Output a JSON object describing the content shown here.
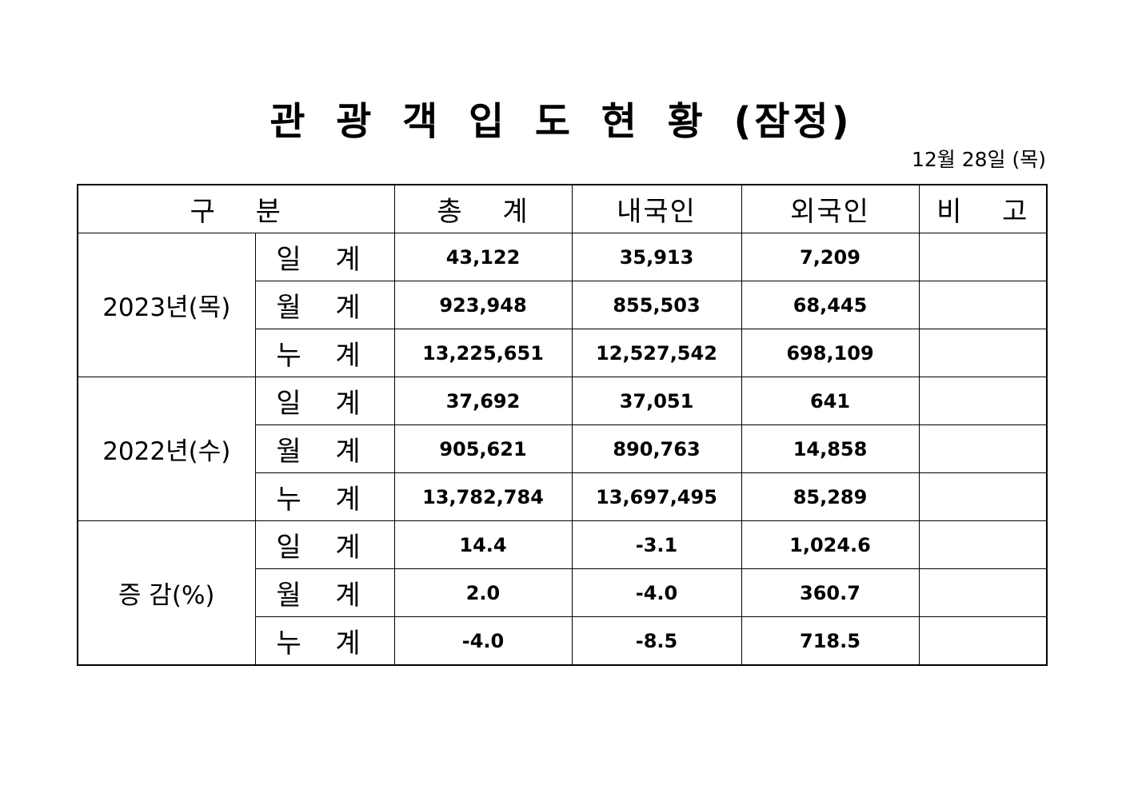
{
  "title": "관 광 객 입 도 현 황 (잠정)",
  "date": "12월 28일 (목)",
  "headers": [
    "구　 분",
    "총　 계",
    "내국인",
    "외국인",
    "비　 고"
  ],
  "groups": [
    {
      "label": "2023년(목)",
      "rows": [
        {
          "sub": "일 계",
          "total": "43,122",
          "domestic": "35,913",
          "foreign": "7,209",
          "note": ""
        },
        {
          "sub": "월 계",
          "total": "923,948",
          "domestic": "855,503",
          "foreign": "68,445",
          "note": ""
        },
        {
          "sub": "누 계",
          "total": "13,225,651",
          "domestic": "12,527,542",
          "foreign": "698,109",
          "note": ""
        }
      ]
    },
    {
      "label": "2022년(수)",
      "rows": [
        {
          "sub": "일 계",
          "total": "37,692",
          "domestic": "37,051",
          "foreign": "641",
          "note": ""
        },
        {
          "sub": "월 계",
          "total": "905,621",
          "domestic": "890,763",
          "foreign": "14,858",
          "note": ""
        },
        {
          "sub": "누 계",
          "total": "13,782,784",
          "domestic": "13,697,495",
          "foreign": "85,289",
          "note": ""
        }
      ]
    },
    {
      "label": "증 감(%)",
      "rows": [
        {
          "sub": "일 계",
          "total": "14.4",
          "domestic": "-3.1",
          "foreign": "1,024.6",
          "note": ""
        },
        {
          "sub": "월 계",
          "total": "2.0",
          "domestic": "-4.0",
          "foreign": "360.7",
          "note": ""
        },
        {
          "sub": "누 계",
          "total": "-4.0",
          "domestic": "-8.5",
          "foreign": "718.5",
          "note": ""
        }
      ]
    }
  ]
}
